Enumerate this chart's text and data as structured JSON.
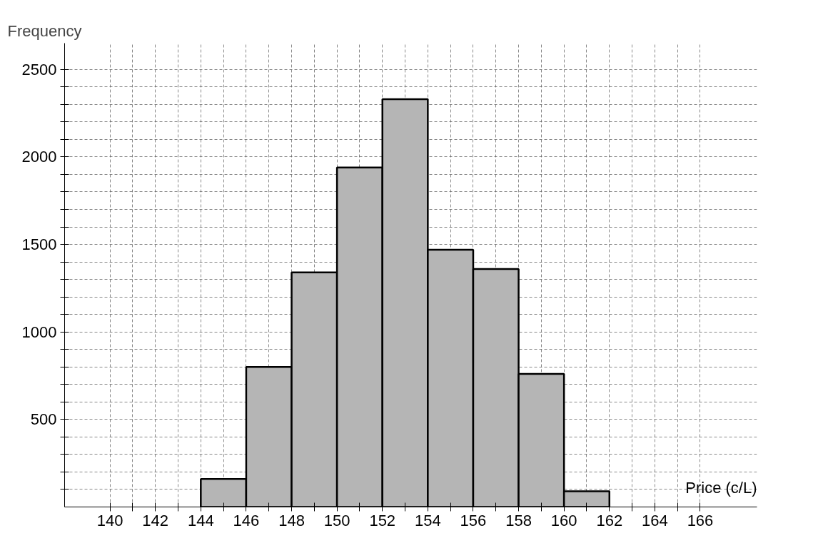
{
  "chart_data": {
    "type": "histogram",
    "xlabel": "Price (c/L)",
    "ylabel": "Frequency",
    "bins": [
      144,
      146,
      148,
      150,
      152,
      154,
      156,
      158,
      160,
      162
    ],
    "values": [
      160,
      800,
      1340,
      1940,
      2330,
      1470,
      1360,
      760,
      90
    ],
    "color": "#b5b5b5",
    "xlim": [
      138,
      168.5
    ],
    "ylim": [
      0,
      2650
    ],
    "xticks": [
      140,
      {
        "value": 141,
        "label": null
      },
      142,
      {
        "value": 143,
        "label": null
      },
      144,
      {
        "value": 145,
        "label": null
      },
      146,
      {
        "value": 147,
        "label": null
      },
      148,
      {
        "value": 149,
        "label": null
      },
      150,
      {
        "value": 151,
        "label": null
      },
      152,
      {
        "value": 153,
        "label": null
      },
      154,
      {
        "value": 155,
        "label": null
      },
      156,
      {
        "value": 157,
        "label": null
      },
      158,
      {
        "value": 159,
        "label": null
      },
      160,
      {
        "value": 161,
        "label": null
      },
      162,
      {
        "value": 163,
        "label": null
      },
      164,
      {
        "value": 165,
        "label": null
      },
      166
    ],
    "yticks": [
      {
        "value": 100,
        "label": null
      },
      {
        "value": 200,
        "label": null
      },
      {
        "value": 300,
        "label": null
      },
      {
        "value": 400,
        "label": null
      },
      500,
      {
        "value": 600,
        "label": null
      },
      {
        "value": 700,
        "label": null
      },
      {
        "value": 800,
        "label": null
      },
      {
        "value": 900,
        "label": null
      },
      1000,
      {
        "value": 1100,
        "label": null
      },
      {
        "value": 1200,
        "label": null
      },
      {
        "value": 1300,
        "label": null
      },
      {
        "value": 1400,
        "label": null
      },
      1500,
      {
        "value": 1600,
        "label": null
      },
      {
        "value": 1700,
        "label": null
      },
      {
        "value": 1800,
        "label": null
      },
      {
        "value": 1900,
        "label": null
      },
      2000,
      {
        "value": 2100,
        "label": null
      },
      {
        "value": 2200,
        "label": null
      },
      {
        "value": 2300,
        "label": null
      },
      {
        "value": 2400,
        "label": null
      },
      2500
    ],
    "grid": true
  }
}
